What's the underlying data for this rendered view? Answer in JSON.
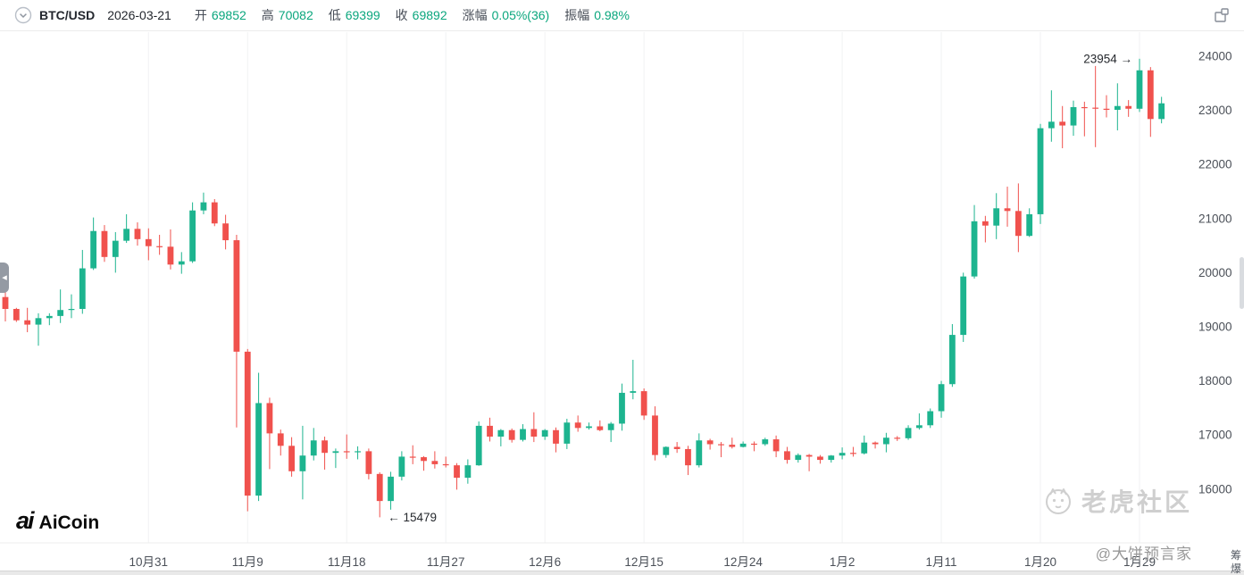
{
  "header": {
    "symbol": "BTC/USD",
    "date": "2026-03-21",
    "fields": [
      {
        "label": "开",
        "value": "69852"
      },
      {
        "label": "高",
        "value": "70082"
      },
      {
        "label": "低",
        "value": "69399"
      },
      {
        "label": "收",
        "value": "69892"
      },
      {
        "label": "涨幅",
        "value": "0.05%(36)"
      },
      {
        "label": "振幅",
        "value": "0.98%"
      }
    ]
  },
  "colors": {
    "up": "#1db48f",
    "down": "#f0514d",
    "accent_text": "#0aa67d",
    "grid": "#f1f2f3",
    "axis_text": "#4b5058"
  },
  "branding": {
    "logo_mark": "ai",
    "logo_text": "AiCoin"
  },
  "watermark": {
    "title": "老虎社区",
    "handle": "@大饼预言家"
  },
  "side_toggles": [
    {
      "label": "筹"
    },
    {
      "label": "爆"
    }
  ],
  "chart_data": {
    "type": "candlestick",
    "symbol": "BTC/USD",
    "interval": "1D",
    "up_color_means": "close >= open",
    "y_ticks": [
      24000,
      23000,
      22000,
      21000,
      20000,
      19000,
      18000,
      17000,
      16000
    ],
    "y_range_visible": [
      15400,
      24200
    ],
    "x_ticks": [
      "10月31",
      "11月9",
      "11月18",
      "11月27",
      "12月6",
      "12月15",
      "12月24",
      "1月2",
      "1月11",
      "1月20",
      "1月29"
    ],
    "x_tick_indices": [
      13,
      22,
      31,
      40,
      49,
      58,
      67,
      76,
      85,
      94,
      103
    ],
    "high_annotation": {
      "index": 103,
      "price": 23954,
      "text": "23954 →",
      "anchor": "end"
    },
    "low_annotation": {
      "index": 34,
      "price": 15479,
      "text": "← 15479",
      "anchor": "start"
    },
    "candles": [
      [
        "10-18",
        19550,
        19680,
        19100,
        19330
      ],
      [
        "10-19",
        19330,
        19350,
        19090,
        19120
      ],
      [
        "10-20",
        19120,
        19350,
        18900,
        19040
      ],
      [
        "10-21",
        19040,
        19250,
        18650,
        19160
      ],
      [
        "10-22",
        19160,
        19250,
        19030,
        19200
      ],
      [
        "10-23",
        19200,
        19690,
        19070,
        19310
      ],
      [
        "10-24",
        19310,
        19600,
        19160,
        19330
      ],
      [
        "10-25",
        19330,
        20420,
        19240,
        20080
      ],
      [
        "10-26",
        20080,
        21020,
        20050,
        20770
      ],
      [
        "10-27",
        20770,
        20880,
        20200,
        20290
      ],
      [
        "10-28",
        20290,
        20750,
        20000,
        20590
      ],
      [
        "10-29",
        20590,
        21080,
        20550,
        20810
      ],
      [
        "10-30",
        20810,
        20930,
        20500,
        20620
      ],
      [
        "10-31",
        20620,
        20820,
        20230,
        20490
      ],
      [
        "11-01",
        20490,
        20700,
        20330,
        20480
      ],
      [
        "11-02",
        20480,
        20800,
        20060,
        20150
      ],
      [
        "11-03",
        20150,
        20380,
        19980,
        20210
      ],
      [
        "11-04",
        20210,
        21300,
        20180,
        21150
      ],
      [
        "11-05",
        21150,
        21480,
        21080,
        21300
      ],
      [
        "11-06",
        21300,
        21360,
        20860,
        20910
      ],
      [
        "11-07",
        20910,
        21070,
        20430,
        20600
      ],
      [
        "11-08",
        20600,
        20700,
        17140,
        18540
      ],
      [
        "11-09",
        18540,
        18590,
        15590,
        15880
      ],
      [
        "11-10",
        15880,
        18150,
        15780,
        17590
      ],
      [
        "11-11",
        17590,
        17690,
        16370,
        17030
      ],
      [
        "11-12",
        17030,
        17100,
        16620,
        16800
      ],
      [
        "11-13",
        16800,
        16960,
        16230,
        16330
      ],
      [
        "11-14",
        16330,
        17170,
        15810,
        16620
      ],
      [
        "11-15",
        16620,
        17130,
        16530,
        16900
      ],
      [
        "11-16",
        16900,
        16970,
        16360,
        16670
      ],
      [
        "11-17",
        16670,
        16750,
        16390,
        16700
      ],
      [
        "11-18",
        16700,
        17010,
        16560,
        16690
      ],
      [
        "11-19",
        16690,
        16790,
        16550,
        16700
      ],
      [
        "11-20",
        16700,
        16750,
        16180,
        16280
      ],
      [
        "11-21",
        16280,
        16310,
        15479,
        15780
      ],
      [
        "11-22",
        15780,
        16320,
        15620,
        16230
      ],
      [
        "11-23",
        16230,
        16700,
        16160,
        16600
      ],
      [
        "11-24",
        16600,
        16810,
        16460,
        16590
      ],
      [
        "11-25",
        16590,
        16610,
        16340,
        16520
      ],
      [
        "11-26",
        16520,
        16700,
        16380,
        16460
      ],
      [
        "11-27",
        16460,
        16600,
        16400,
        16440
      ],
      [
        "11-28",
        16440,
        16480,
        15990,
        16210
      ],
      [
        "11-29",
        16210,
        16550,
        16100,
        16440
      ],
      [
        "11-30",
        16440,
        17250,
        16430,
        17170
      ],
      [
        "12-01",
        17170,
        17320,
        16880,
        16970
      ],
      [
        "12-02",
        16970,
        17110,
        16790,
        17090
      ],
      [
        "12-03",
        17090,
        17120,
        16860,
        16910
      ],
      [
        "12-04",
        16910,
        17200,
        16880,
        17110
      ],
      [
        "12-05",
        17110,
        17420,
        16870,
        16970
      ],
      [
        "12-06",
        16970,
        17110,
        16910,
        17090
      ],
      [
        "12-07",
        17090,
        17140,
        16680,
        16840
      ],
      [
        "12-08",
        16840,
        17300,
        16740,
        17230
      ],
      [
        "12-09",
        17230,
        17360,
        17060,
        17130
      ],
      [
        "12-10",
        17130,
        17230,
        17100,
        17160
      ],
      [
        "12-11",
        17160,
        17270,
        17070,
        17090
      ],
      [
        "12-12",
        17090,
        17240,
        16870,
        17210
      ],
      [
        "12-13",
        17210,
        17950,
        17080,
        17780
      ],
      [
        "12-14",
        17780,
        18390,
        17660,
        17810
      ],
      [
        "12-15",
        17810,
        17860,
        17280,
        17360
      ],
      [
        "12-16",
        17360,
        17530,
        16530,
        16630
      ],
      [
        "12-17",
        16630,
        16790,
        16580,
        16780
      ],
      [
        "12-18",
        16780,
        16870,
        16670,
        16740
      ],
      [
        "12-19",
        16740,
        16800,
        16260,
        16440
      ],
      [
        "12-20",
        16440,
        17030,
        16400,
        16900
      ],
      [
        "12-21",
        16900,
        16930,
        16730,
        16830
      ],
      [
        "12-22",
        16830,
        16870,
        16590,
        16820
      ],
      [
        "12-23",
        16820,
        16950,
        16750,
        16780
      ],
      [
        "12-24",
        16780,
        16880,
        16770,
        16840
      ],
      [
        "12-25",
        16840,
        16880,
        16700,
        16830
      ],
      [
        "12-26",
        16830,
        16950,
        16800,
        16920
      ],
      [
        "12-27",
        16920,
        16990,
        16590,
        16700
      ],
      [
        "12-28",
        16700,
        16780,
        16470,
        16540
      ],
      [
        "12-29",
        16540,
        16660,
        16490,
        16630
      ],
      [
        "12-30",
        16630,
        16650,
        16330,
        16600
      ],
      [
        "12-31",
        16600,
        16630,
        16470,
        16540
      ],
      [
        "01-01",
        16540,
        16630,
        16490,
        16620
      ],
      [
        "01-02",
        16620,
        16770,
        16550,
        16670
      ],
      [
        "01-03",
        16670,
        16780,
        16600,
        16660
      ],
      [
        "01-04",
        16660,
        16990,
        16640,
        16860
      ],
      [
        "01-05",
        16860,
        16880,
        16750,
        16830
      ],
      [
        "01-06",
        16830,
        17040,
        16680,
        16950
      ],
      [
        "01-07",
        16950,
        16980,
        16890,
        16940
      ],
      [
        "01-08",
        16940,
        17180,
        16910,
        17130
      ],
      [
        "01-09",
        17130,
        17400,
        17100,
        17180
      ],
      [
        "01-10",
        17180,
        17490,
        17130,
        17440
      ],
      [
        "01-11",
        17440,
        18000,
        17320,
        17940
      ],
      [
        "01-12",
        17940,
        19050,
        17890,
        18850
      ],
      [
        "01-13",
        18850,
        20000,
        18720,
        19930
      ],
      [
        "01-14",
        19930,
        21250,
        19890,
        20950
      ],
      [
        "01-15",
        20950,
        21050,
        20560,
        20870
      ],
      [
        "01-16",
        20870,
        21470,
        20620,
        21190
      ],
      [
        "01-17",
        21190,
        21590,
        20850,
        21140
      ],
      [
        "01-18",
        21140,
        21650,
        20380,
        20680
      ],
      [
        "01-19",
        20680,
        21190,
        20660,
        21080
      ],
      [
        "01-20",
        21080,
        22750,
        20900,
        22670
      ],
      [
        "01-21",
        22670,
        23370,
        22420,
        22790
      ],
      [
        "01-22",
        22790,
        23080,
        22300,
        22720
      ],
      [
        "01-23",
        22720,
        23180,
        22530,
        23060
      ],
      [
        "01-24",
        23060,
        23160,
        22520,
        23050
      ],
      [
        "01-25",
        23050,
        23820,
        22320,
        23030
      ],
      [
        "01-26",
        23030,
        23280,
        22870,
        23010
      ],
      [
        "01-27",
        23010,
        23500,
        22630,
        23080
      ],
      [
        "01-28",
        23080,
        23190,
        22880,
        23030
      ],
      [
        "01-29",
        23030,
        23954,
        22970,
        23740
      ],
      [
        "01-30",
        23740,
        23800,
        22510,
        22840
      ],
      [
        "01-31",
        22840,
        23250,
        22760,
        23130
      ]
    ]
  }
}
